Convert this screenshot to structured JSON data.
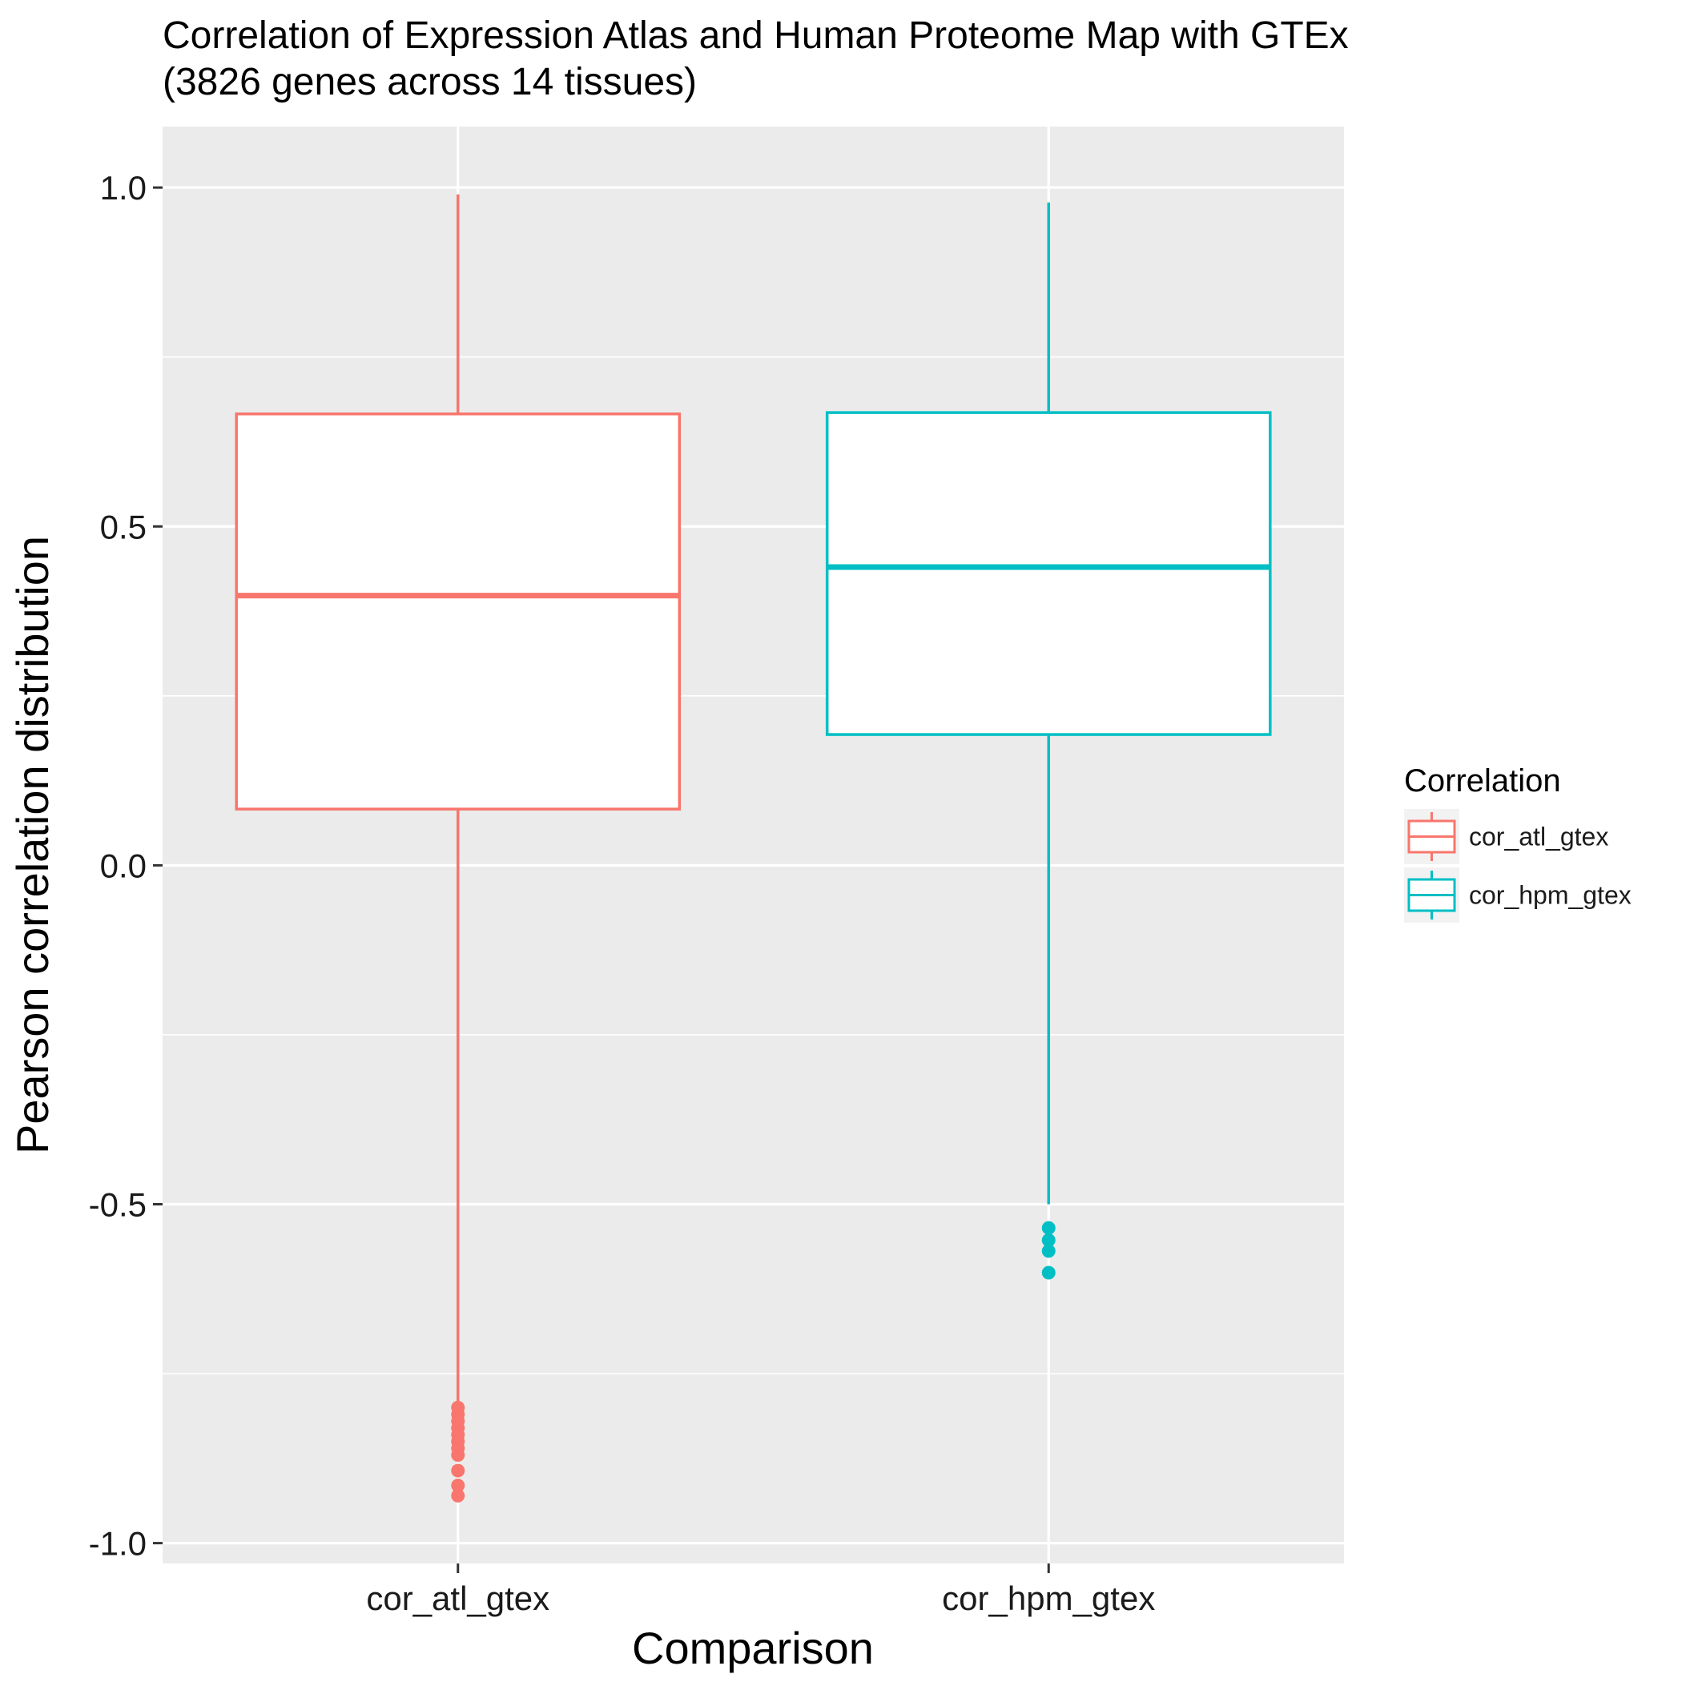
{
  "chart_data": {
    "type": "box",
    "title": "Correlation of Expression Atlas and Human Proteome Map with GTEx",
    "subtitle": "(3826 genes across 14 tissues)",
    "xlabel": "Comparison",
    "ylabel": "Pearson correlation distribution",
    "categories": [
      "cor_atl_gtex",
      "cor_hpm_gtex"
    ],
    "ylim": [
      -1.03,
      1.09
    ],
    "yticks": [
      -1.0,
      -0.5,
      0.0,
      0.5,
      1.0
    ],
    "ytick_labels": [
      "-1.0",
      "-0.5",
      "0.0",
      "0.5",
      "1.0"
    ],
    "grid": true,
    "legend": {
      "title": "Correlation",
      "position": "right",
      "entries": [
        "cor_atl_gtex",
        "cor_hpm_gtex"
      ]
    },
    "series": [
      {
        "category": "cor_atl_gtex",
        "color": "#F8766D",
        "whisker_low": -0.8,
        "q1": 0.083,
        "median": 0.398,
        "q3": 0.666,
        "whisker_high": 0.99,
        "outliers": [
          -0.8,
          -0.81,
          -0.82,
          -0.83,
          -0.84,
          -0.85,
          -0.86,
          -0.87,
          -0.893,
          -0.915,
          -0.93
        ]
      },
      {
        "category": "cor_hpm_gtex",
        "color": "#00BFC4",
        "whisker_low": -0.5,
        "q1": 0.193,
        "median": 0.44,
        "q3": 0.668,
        "whisker_high": 0.978,
        "outliers": [
          -0.535,
          -0.553,
          -0.569,
          -0.601
        ]
      }
    ]
  }
}
